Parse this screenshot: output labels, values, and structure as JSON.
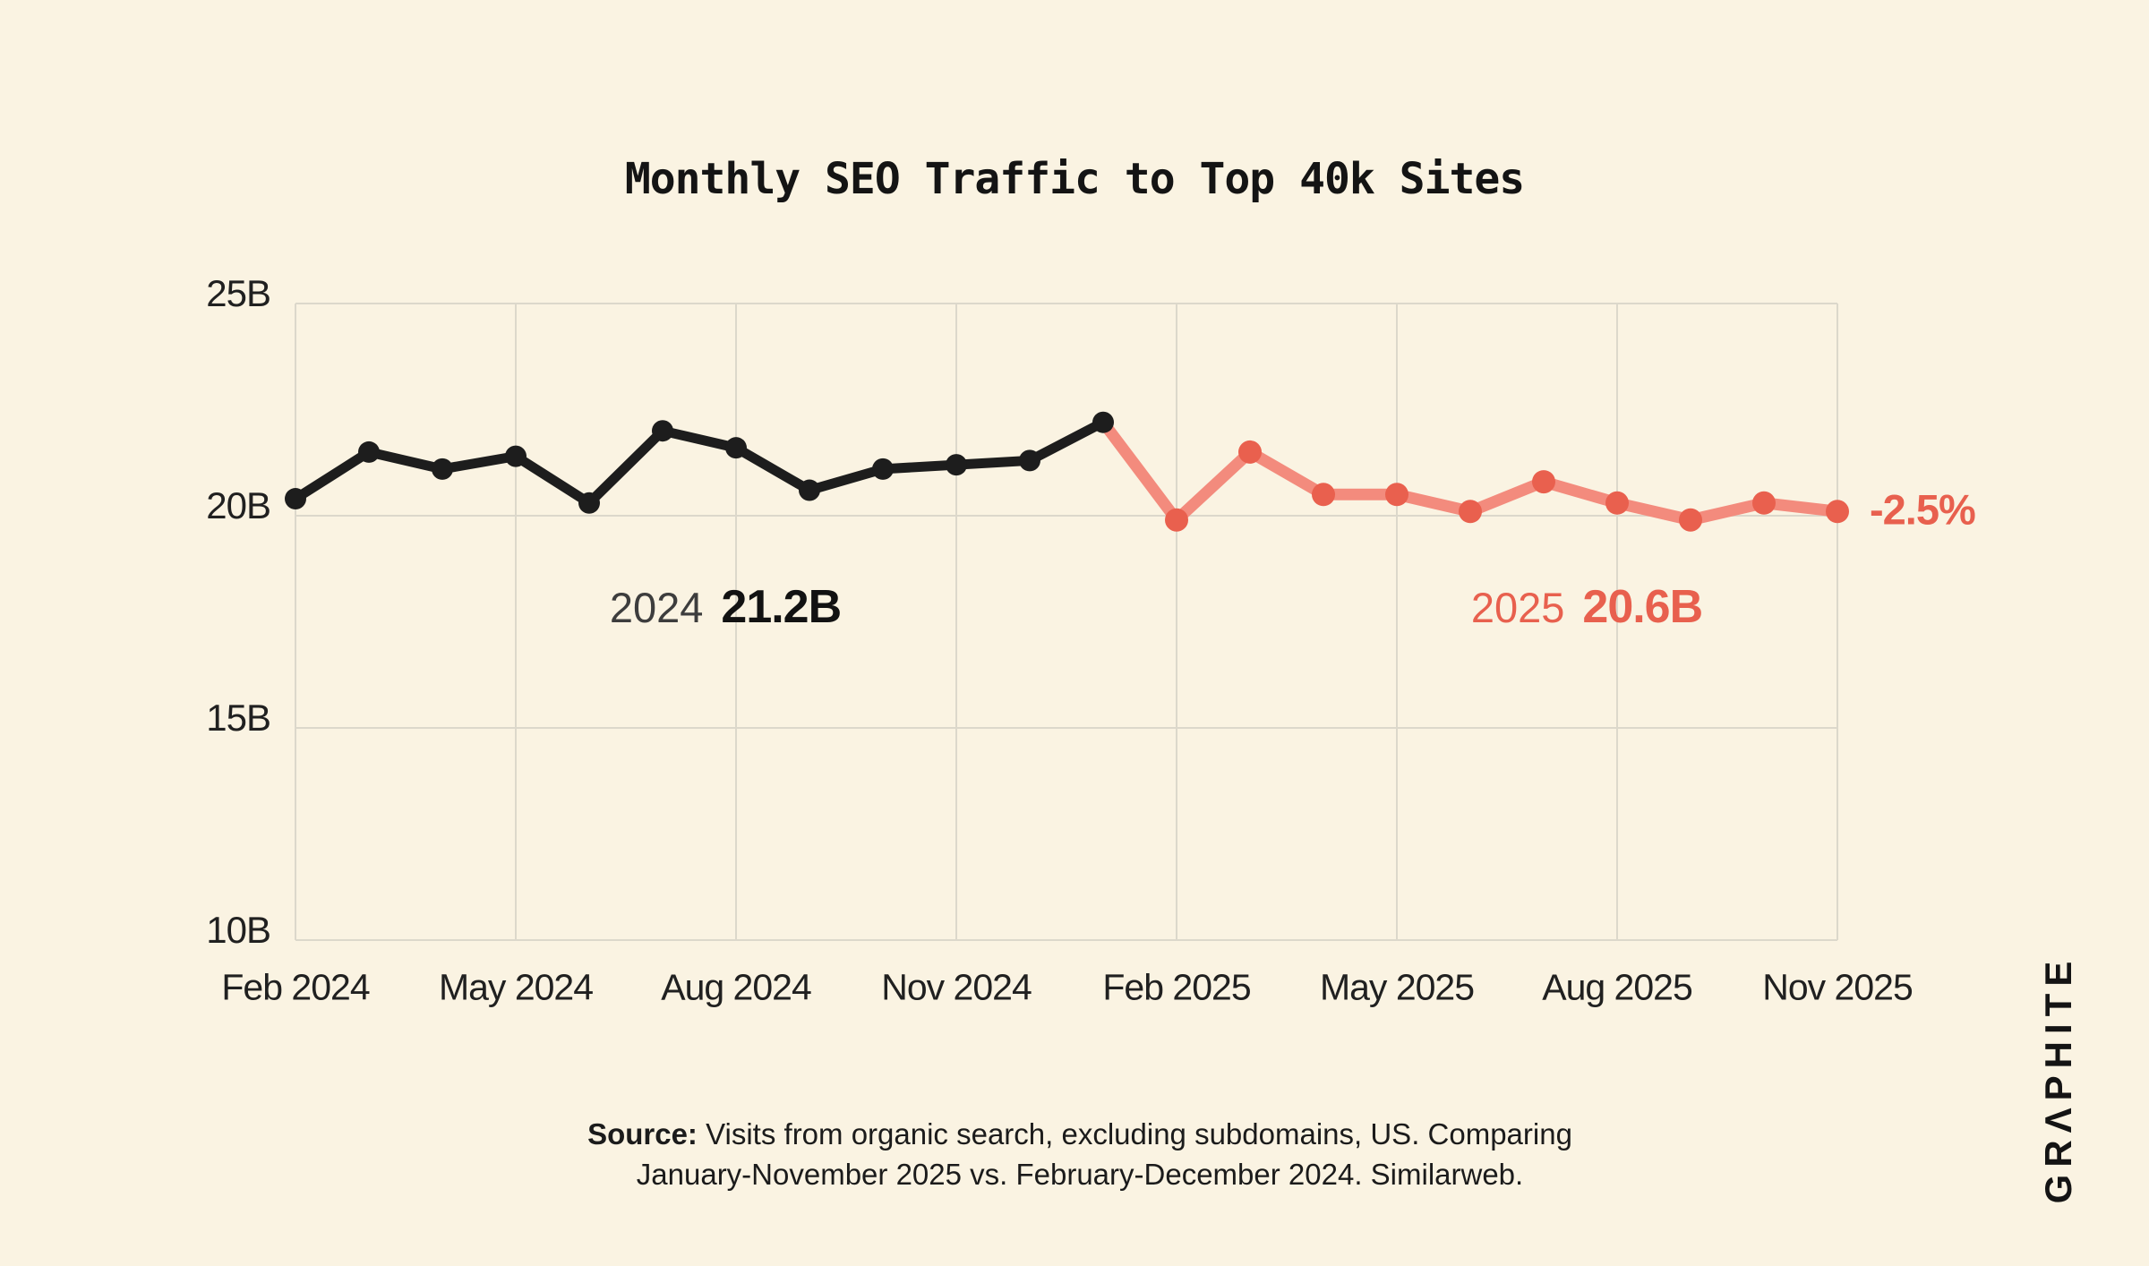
{
  "title": "Monthly SEO Traffic to Top 40k Sites",
  "logo_text": "GRΛPHITE",
  "annotations": {
    "y2024_year": "2024",
    "y2024_value": "21.2B",
    "y2025_year": "2025",
    "y2025_value": "20.6B",
    "change": "-2.5%"
  },
  "source": {
    "label": "Source:",
    "line1_rest": " Visits from organic search, excluding subdomains, US. Comparing",
    "line2": "January-November 2025 vs. February-December 2024. Similarweb."
  },
  "chart_data": {
    "type": "line",
    "title": "Monthly SEO Traffic to Top 40k Sites",
    "ylim": [
      10,
      25
    ],
    "grid": true,
    "y_ticks": [
      {
        "label": "25B",
        "value": 25
      },
      {
        "label": "20B",
        "value": 20
      },
      {
        "label": "15B",
        "value": 15
      },
      {
        "label": "10B",
        "value": 10
      }
    ],
    "x_tick_labels": [
      "Feb 2024",
      "May 2024",
      "Aug 2024",
      "Nov 2024",
      "Feb 2025",
      "May 2025",
      "Aug 2025",
      "Nov 2025"
    ],
    "series": [
      {
        "name": "2024",
        "average_label": "21.2B",
        "line_color": "#1d1d1d",
        "dot_color": "#1d1d1d",
        "months": [
          "Feb 2024",
          "Mar 2024",
          "Apr 2024",
          "May 2024",
          "Jun 2024",
          "Jul 2024",
          "Aug 2024",
          "Sep 2024",
          "Oct 2024",
          "Nov 2024",
          "Dec 2024",
          "Jan 2025"
        ],
        "values": [
          20.4,
          21.5,
          21.1,
          21.4,
          20.3,
          22.0,
          21.6,
          20.6,
          21.1,
          21.2,
          21.3,
          22.2
        ]
      },
      {
        "name": "2025",
        "average_label": "20.6B",
        "change_label": "-2.5%",
        "line_color": "#F38B7D",
        "dot_color": "#E9604E",
        "months": [
          "Jan 2025",
          "Feb 2025",
          "Mar 2025",
          "Apr 2025",
          "May 2025",
          "Jun 2025",
          "Jul 2025",
          "Aug 2025",
          "Sep 2025",
          "Oct 2025",
          "Nov 2025"
        ],
        "values": [
          22.2,
          19.9,
          21.5,
          20.5,
          20.5,
          20.1,
          20.8,
          20.3,
          19.9,
          20.3,
          20.1
        ]
      }
    ]
  }
}
